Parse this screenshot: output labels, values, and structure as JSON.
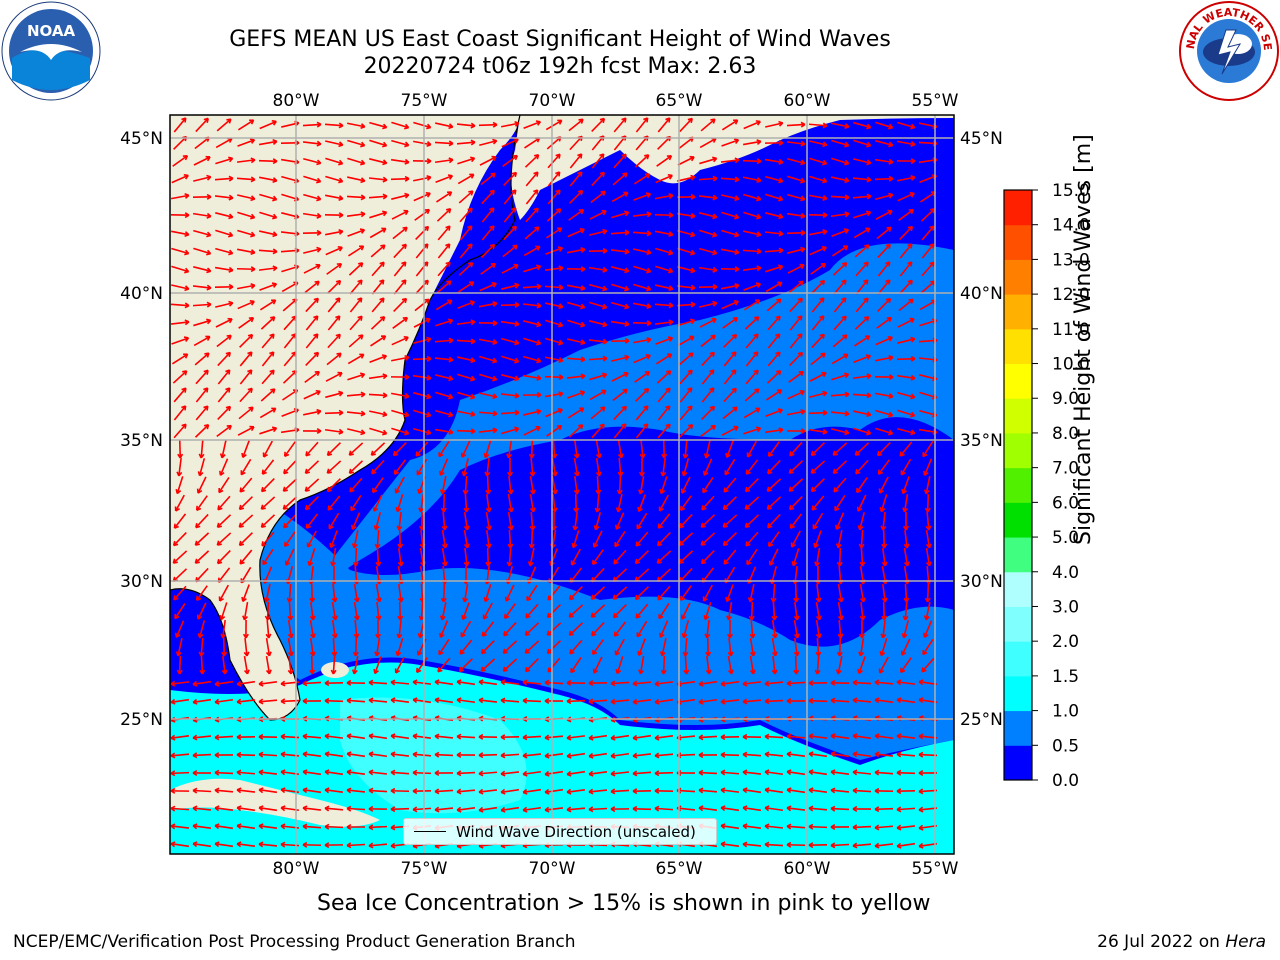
{
  "header": {
    "title_line1": "GEFS MEAN US East Coast Significant Height of Wind Waves",
    "title_line2": "20220724 t06z 192h fcst   Max: 2.63"
  },
  "logos": {
    "left": "noaa-logo",
    "left_text": "NOAA",
    "right": "nws-logo",
    "right_text": "NATIONAL WEATHER SERVICE"
  },
  "map": {
    "lon_ticks": [
      "80°W",
      "75°W",
      "70°W",
      "65°W",
      "60°W",
      "55°W"
    ],
    "lat_ticks_left": [
      "45°N",
      "40°N",
      "35°N",
      "30°N",
      "25°N"
    ],
    "lat_ticks_right": [
      "45°N",
      "40°N",
      "35°N",
      "30°N",
      "25°N"
    ],
    "legend_label": "Wind Wave Direction (unscaled)",
    "arrow_color": "#ff0000",
    "land_color": "#efeedb",
    "grid_color": "#b0b0b0"
  },
  "colorbar": {
    "label": "Significant Height of Wind Waves [m]",
    "tick_labels": [
      "0.0",
      "0.5",
      "1.0",
      "1.5",
      "2.0",
      "3.0",
      "4.0",
      "5.0",
      "6.0",
      "7.0",
      "8.0",
      "9.0",
      "10.0",
      "11.0",
      "12.0",
      "13.0",
      "14.0",
      "15.0"
    ],
    "colors": [
      "#0000ff",
      "#0080ff",
      "#00ffff",
      "#40ffff",
      "#80ffff",
      "#b0ffff",
      "#40ff80",
      "#00e000",
      "#50f000",
      "#a0ff00",
      "#d0ff00",
      "#ffff00",
      "#ffe000",
      "#ffb000",
      "#ff8000",
      "#ff5000",
      "#ff2000"
    ]
  },
  "subtitle": "Sea Ice Concentration > 15% is shown in pink to yellow",
  "footer": {
    "left": "NCEP/EMC/Verification Post Processing Product Generation Branch",
    "right_date": "26 Jul 2022 on ",
    "right_machine": "Hera"
  }
}
